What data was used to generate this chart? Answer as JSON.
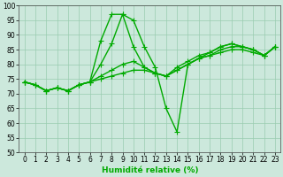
{
  "xlabel": "Humidité relative (%)",
  "xlim": [
    -0.5,
    23.5
  ],
  "ylim": [
    50,
    100
  ],
  "xticks": [
    0,
    1,
    2,
    3,
    4,
    5,
    6,
    7,
    8,
    9,
    10,
    11,
    12,
    13,
    14,
    15,
    16,
    17,
    18,
    19,
    20,
    21,
    22,
    23
  ],
  "yticks": [
    50,
    55,
    60,
    65,
    70,
    75,
    80,
    85,
    90,
    95,
    100
  ],
  "background_color": "#cce8dc",
  "grid_color": "#99ccb0",
  "line_color": "#00aa00",
  "lines": [
    [
      74,
      73,
      71,
      72,
      71,
      73,
      74,
      88,
      97,
      97,
      95,
      86,
      79,
      65,
      57,
      80,
      82,
      84,
      86,
      87,
      86,
      85,
      83,
      86
    ],
    [
      74,
      73,
      71,
      72,
      71,
      73,
      74,
      80,
      87,
      97,
      86,
      79,
      77,
      76,
      79,
      81,
      83,
      84,
      86,
      87,
      86,
      85,
      83,
      86
    ],
    [
      74,
      73,
      71,
      72,
      71,
      73,
      74,
      76,
      78,
      80,
      81,
      79,
      77,
      76,
      78,
      80,
      82,
      83,
      85,
      86,
      86,
      85,
      83,
      86
    ],
    [
      74,
      73,
      71,
      72,
      71,
      73,
      74,
      75,
      76,
      77,
      78,
      78,
      77,
      76,
      78,
      80,
      82,
      83,
      84,
      85,
      85,
      84,
      83,
      86
    ]
  ],
  "marker": "+",
  "markersize": 4,
  "linewidth": 1.0,
  "tick_fontsize": 5.5,
  "xlabel_fontsize": 6.5
}
